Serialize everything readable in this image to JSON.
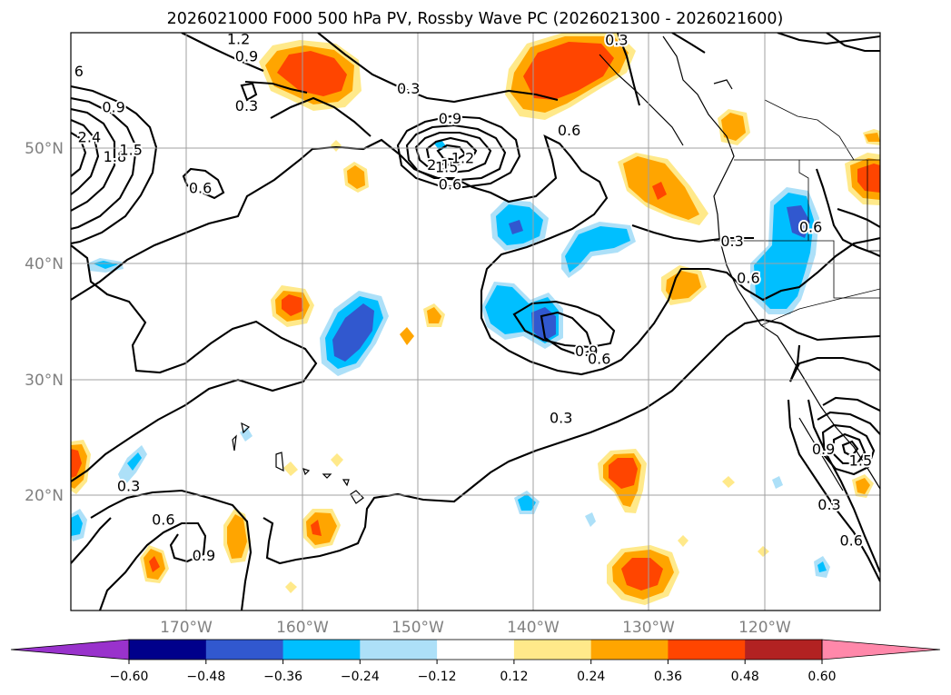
{
  "chart_data": {
    "type": "heatmap",
    "title": "2026021000 F000 500 hPa PV, Rossby Wave PC (2026021300 - 2026021600)",
    "x_axis": {
      "label": "",
      "range": [
        -180,
        -110
      ],
      "ticks": [
        -170,
        -160,
        -150,
        -140,
        -130,
        -120
      ],
      "tick_labels": [
        "170°W",
        "160°W",
        "150°W",
        "140°W",
        "130°W",
        "120°W"
      ]
    },
    "y_axis": {
      "label": "",
      "range": [
        10,
        60
      ],
      "ticks": [
        20,
        30,
        40,
        50
      ],
      "tick_labels": [
        "20°N",
        "30°N",
        "40°N",
        "50°N"
      ]
    },
    "grid": true,
    "colorbar": {
      "orientation": "horizontal",
      "extend": "both",
      "levels": [
        -0.6,
        -0.48,
        -0.36,
        -0.24,
        -0.12,
        0.12,
        0.24,
        0.36,
        0.48,
        0.6
      ],
      "tick_labels": [
        "−0.60",
        "−0.48",
        "−0.36",
        "−0.24",
        "−0.12",
        "0.12",
        "0.24",
        "0.36",
        "0.48",
        "0.60"
      ],
      "colors": [
        "#9932CC",
        "#00008B",
        "#3158CF",
        "#00BFFF",
        "#ADE0F8",
        "#FFFFFF",
        "#FFE98A",
        "#FFA500",
        "#FF4500",
        "#B22222",
        "#FF88AA"
      ]
    },
    "shaded_field": "Rossby Wave PC",
    "contour_field": "500 hPa PV",
    "contour_labels": [
      {
        "text": "1.2",
        "lon": -165.5,
        "lat": 59.5
      },
      {
        "text": "0.9",
        "lon": -164.8,
        "lat": 58.0
      },
      {
        "text": "0.3",
        "lon": -164.8,
        "lat": 53.7
      },
      {
        "text": "0.3",
        "lon": -150.8,
        "lat": 55.2
      },
      {
        "text": "0.9",
        "lon": -147.2,
        "lat": 52.6
      },
      {
        "text": "0.6",
        "lon": -147.2,
        "lat": 46.9
      },
      {
        "text": "2.1",
        "lon": -148.2,
        "lat": 48.6
      },
      {
        "text": "1.5",
        "lon": -147.5,
        "lat": 48.4
      },
      {
        "text": "1.2",
        "lon": -146.1,
        "lat": 49.2
      },
      {
        "text": "0.9",
        "lon": -176.3,
        "lat": 53.6
      },
      {
        "text": "2.4",
        "lon": -178.4,
        "lat": 51.0
      },
      {
        "text": "1.8",
        "lon": -176.2,
        "lat": 49.3
      },
      {
        "text": "1.5",
        "lon": -174.8,
        "lat": 49.9
      },
      {
        "text": "6",
        "lon": -179.3,
        "lat": 56.7
      },
      {
        "text": "0.6",
        "lon": -168.8,
        "lat": 46.6
      },
      {
        "text": "0.3",
        "lon": -132.8,
        "lat": 59.4
      },
      {
        "text": "0.6",
        "lon": -136.9,
        "lat": 51.6
      },
      {
        "text": "0.3",
        "lon": -122.8,
        "lat": 42.0
      },
      {
        "text": "0.6",
        "lon": -116.0,
        "lat": 43.2
      },
      {
        "text": "0.6",
        "lon": -121.4,
        "lat": 38.8
      },
      {
        "text": "0.9",
        "lon": -135.4,
        "lat": 32.5
      },
      {
        "text": "0.6",
        "lon": -134.3,
        "lat": 31.8
      },
      {
        "text": "0.3",
        "lon": -137.6,
        "lat": 26.7
      },
      {
        "text": "0.9",
        "lon": -114.9,
        "lat": 24.0
      },
      {
        "text": "1.5",
        "lon": -111.7,
        "lat": 23.0
      },
      {
        "text": "0.3",
        "lon": -114.4,
        "lat": 19.2
      },
      {
        "text": "0.6",
        "lon": -112.5,
        "lat": 16.1
      },
      {
        "text": "0.3",
        "lon": -175.0,
        "lat": 20.8
      },
      {
        "text": "0.6",
        "lon": -172.0,
        "lat": 17.9
      },
      {
        "text": "0.9",
        "lon": -168.5,
        "lat": 14.8
      }
    ]
  }
}
